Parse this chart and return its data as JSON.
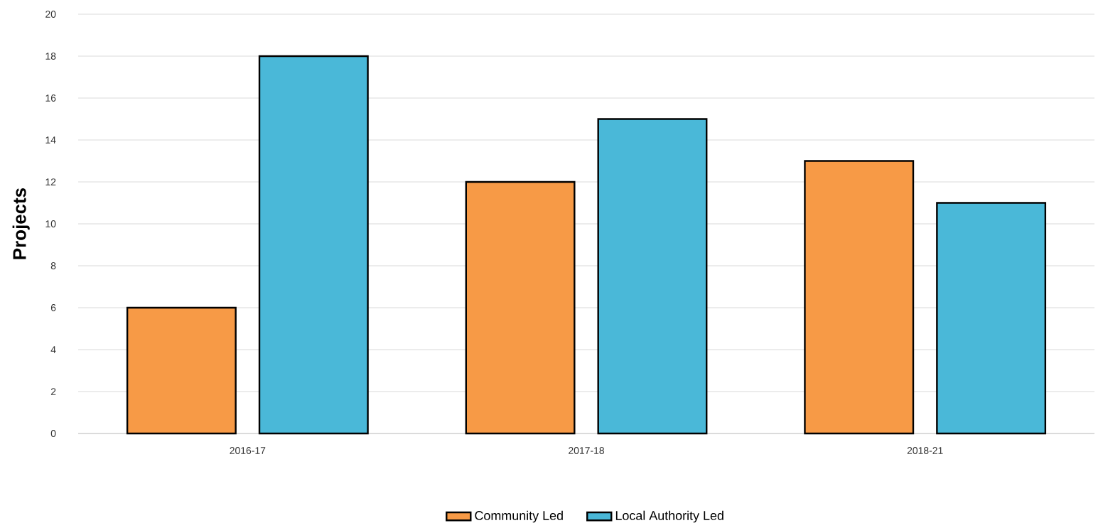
{
  "chart_data": {
    "type": "bar",
    "ylabel": "Projects",
    "categories": [
      "2016-17",
      "2017-18",
      "2018-21"
    ],
    "series": [
      {
        "name": "Community Led",
        "color": "#f79a46",
        "values": [
          6,
          12,
          13
        ]
      },
      {
        "name": "Local Authority Led",
        "color": "#4ab8d8",
        "values": [
          18,
          15,
          11
        ]
      }
    ],
    "ylim": [
      0,
      20
    ],
    "yticks": [
      0,
      2,
      4,
      6,
      8,
      10,
      12,
      14,
      16,
      18,
      20
    ],
    "grid": "y",
    "legend": "bottom"
  }
}
